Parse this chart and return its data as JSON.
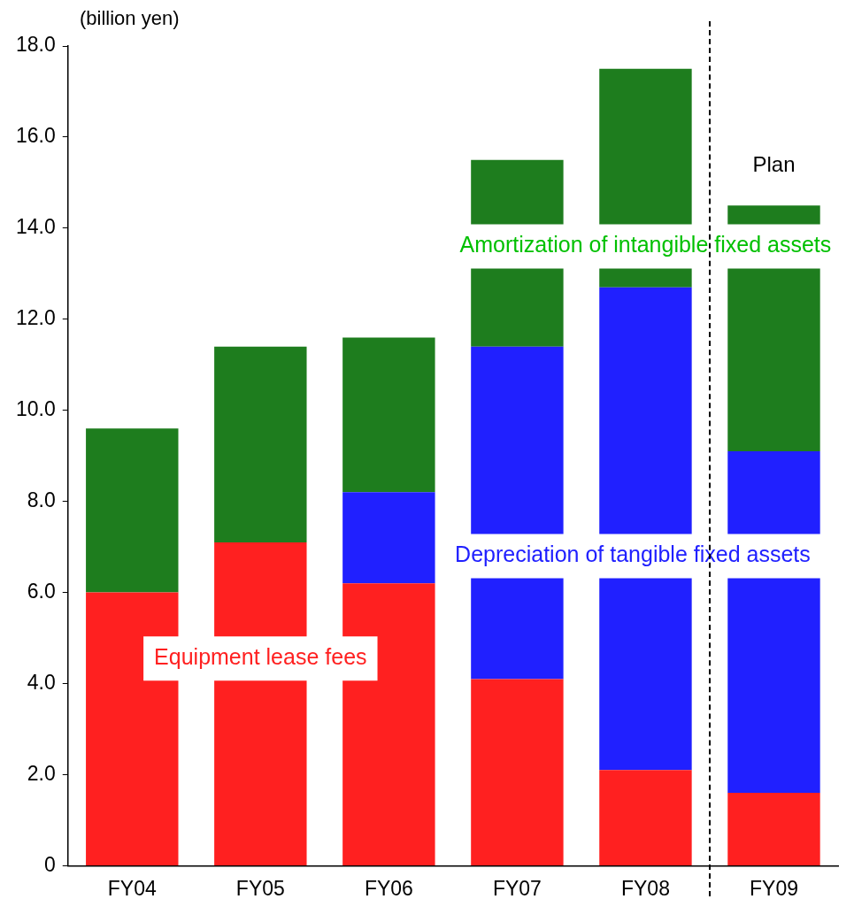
{
  "chart_data": {
    "type": "bar",
    "stacked": true,
    "ylabel": "(billion yen)",
    "categories": [
      "FY04",
      "FY05",
      "FY06",
      "FY07",
      "FY08",
      "FY09"
    ],
    "series": [
      {
        "name": "Equipment lease fees",
        "color": "#ff2020",
        "values": [
          6.0,
          7.1,
          6.2,
          4.1,
          2.1,
          1.6
        ]
      },
      {
        "name": "Depreciation of tangible fixed assets",
        "color": "#2020ff",
        "values": [
          null,
          null,
          2.0,
          7.3,
          10.6,
          7.5
        ]
      },
      {
        "name": "Amortization of intangible fixed assets",
        "color": "#1e7d1e",
        "values": [
          3.6,
          4.3,
          3.4,
          4.1,
          4.8,
          5.4
        ]
      }
    ],
    "ylim": [
      0,
      18
    ],
    "yticks": [
      {
        "value": 0,
        "label": "0"
      },
      {
        "value": 2,
        "label": "2.0"
      },
      {
        "value": 4,
        "label": "4.0"
      },
      {
        "value": 6,
        "label": "6.0"
      },
      {
        "value": 8,
        "label": "8.0"
      },
      {
        "value": 10,
        "label": "10.0"
      },
      {
        "value": 12,
        "label": "12.0"
      },
      {
        "value": 14,
        "label": "14.0"
      },
      {
        "value": 16,
        "label": "16.0"
      },
      {
        "value": 18,
        "label": "18.0"
      }
    ],
    "annotations": [
      "Plan"
    ],
    "grid": false,
    "legend": false
  }
}
